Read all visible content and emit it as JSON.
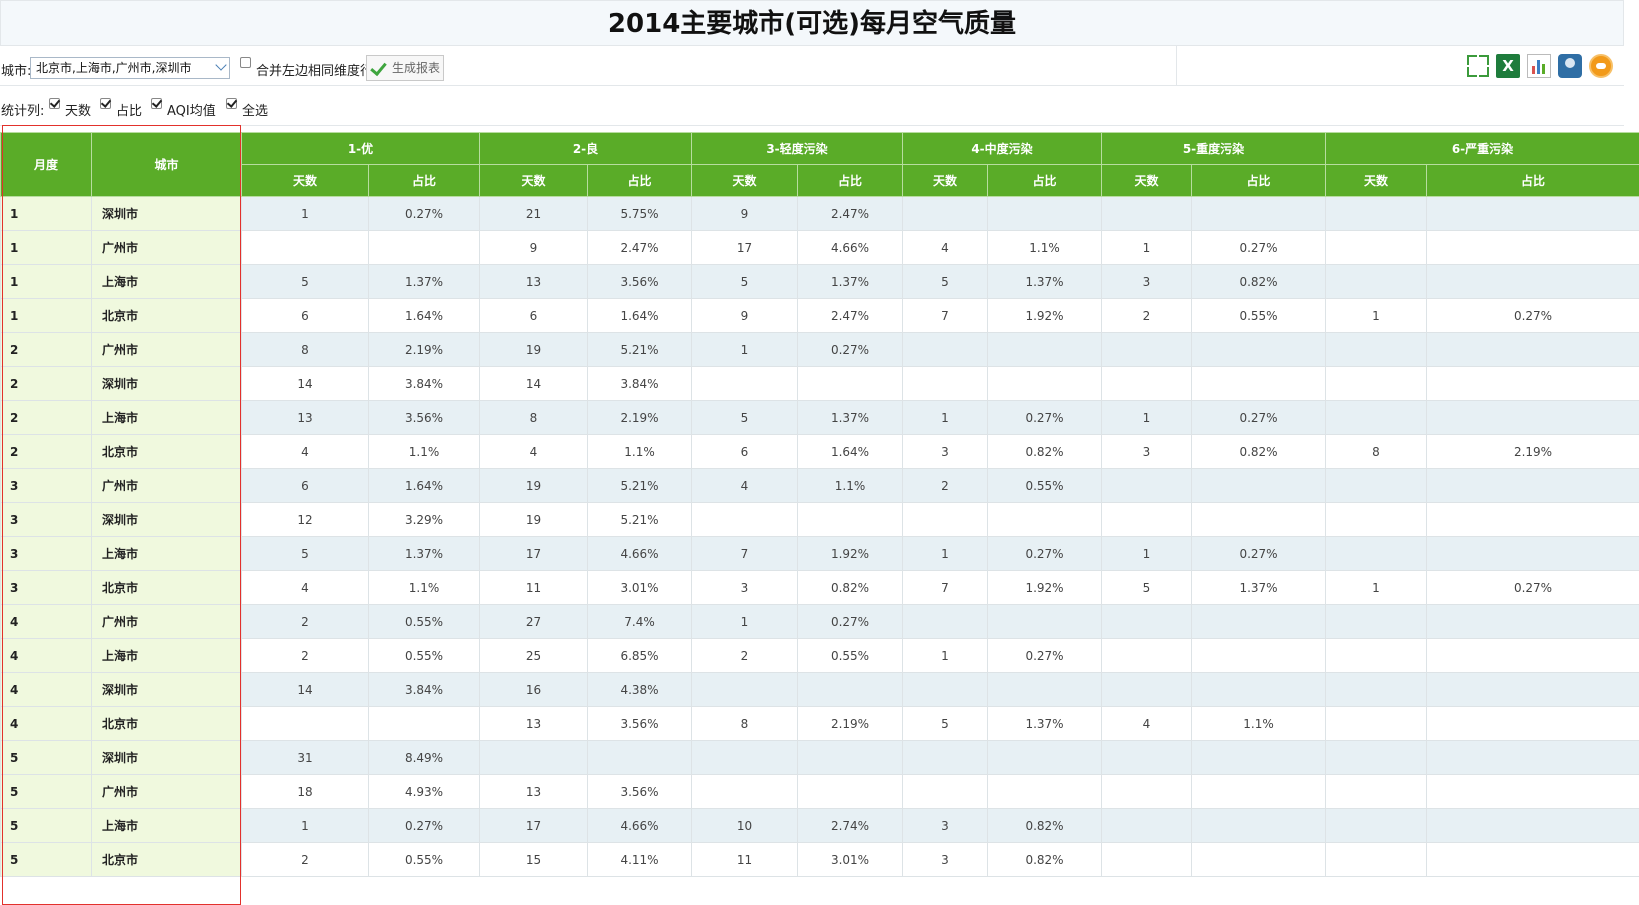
{
  "title": "2014主要城市(可选)每月空气质量",
  "toolbar": {
    "city_label": "城市:",
    "city_value": "北京市,上海市,广州市,深圳市",
    "merge_label": "合并左边相同维度行",
    "merge_checked": false,
    "generate_label": "生成报表",
    "icons": [
      "fullscreen-icon",
      "excel-icon",
      "chart-icon",
      "user-icon",
      "chat-icon"
    ],
    "excel_glyph": "X"
  },
  "stats": {
    "label": "统计列:",
    "options": [
      {
        "label": "天数",
        "checked": true
      },
      {
        "label": "占比",
        "checked": true
      },
      {
        "label": "AQI均值",
        "checked": true
      },
      {
        "label": "全选",
        "checked": true
      }
    ]
  },
  "table": {
    "fixed_headers": [
      "月度",
      "城市"
    ],
    "groups": [
      "1-优",
      "2-良",
      "3-轻度污染",
      "4-中度污染",
      "5-重度污染",
      "6-严重污染"
    ],
    "sub_headers": [
      "天数",
      "占比"
    ],
    "rows": [
      {
        "month": "1",
        "city": "深圳市",
        "values": [
          "1",
          "0.27%",
          "21",
          "5.75%",
          "9",
          "2.47%",
          "",
          "",
          "",
          "",
          "",
          ""
        ]
      },
      {
        "month": "1",
        "city": "广州市",
        "values": [
          "",
          "",
          "9",
          "2.47%",
          "17",
          "4.66%",
          "4",
          "1.1%",
          "1",
          "0.27%",
          "",
          ""
        ]
      },
      {
        "month": "1",
        "city": "上海市",
        "values": [
          "5",
          "1.37%",
          "13",
          "3.56%",
          "5",
          "1.37%",
          "5",
          "1.37%",
          "3",
          "0.82%",
          "",
          ""
        ]
      },
      {
        "month": "1",
        "city": "北京市",
        "values": [
          "6",
          "1.64%",
          "6",
          "1.64%",
          "9",
          "2.47%",
          "7",
          "1.92%",
          "2",
          "0.55%",
          "1",
          "0.27%"
        ]
      },
      {
        "month": "2",
        "city": "广州市",
        "values": [
          "8",
          "2.19%",
          "19",
          "5.21%",
          "1",
          "0.27%",
          "",
          "",
          "",
          "",
          "",
          ""
        ]
      },
      {
        "month": "2",
        "city": "深圳市",
        "values": [
          "14",
          "3.84%",
          "14",
          "3.84%",
          "",
          "",
          "",
          "",
          "",
          "",
          "",
          ""
        ]
      },
      {
        "month": "2",
        "city": "上海市",
        "values": [
          "13",
          "3.56%",
          "8",
          "2.19%",
          "5",
          "1.37%",
          "1",
          "0.27%",
          "1",
          "0.27%",
          "",
          ""
        ]
      },
      {
        "month": "2",
        "city": "北京市",
        "values": [
          "4",
          "1.1%",
          "4",
          "1.1%",
          "6",
          "1.64%",
          "3",
          "0.82%",
          "3",
          "0.82%",
          "8",
          "2.19%"
        ]
      },
      {
        "month": "3",
        "city": "广州市",
        "values": [
          "6",
          "1.64%",
          "19",
          "5.21%",
          "4",
          "1.1%",
          "2",
          "0.55%",
          "",
          "",
          "",
          ""
        ]
      },
      {
        "month": "3",
        "city": "深圳市",
        "values": [
          "12",
          "3.29%",
          "19",
          "5.21%",
          "",
          "",
          "",
          "",
          "",
          "",
          "",
          ""
        ]
      },
      {
        "month": "3",
        "city": "上海市",
        "values": [
          "5",
          "1.37%",
          "17",
          "4.66%",
          "7",
          "1.92%",
          "1",
          "0.27%",
          "1",
          "0.27%",
          "",
          ""
        ]
      },
      {
        "month": "3",
        "city": "北京市",
        "values": [
          "4",
          "1.1%",
          "11",
          "3.01%",
          "3",
          "0.82%",
          "7",
          "1.92%",
          "5",
          "1.37%",
          "1",
          "0.27%"
        ]
      },
      {
        "month": "4",
        "city": "广州市",
        "values": [
          "2",
          "0.55%",
          "27",
          "7.4%",
          "1",
          "0.27%",
          "",
          "",
          "",
          "",
          "",
          ""
        ]
      },
      {
        "month": "4",
        "city": "上海市",
        "values": [
          "2",
          "0.55%",
          "25",
          "6.85%",
          "2",
          "0.55%",
          "1",
          "0.27%",
          "",
          "",
          "",
          ""
        ]
      },
      {
        "month": "4",
        "city": "深圳市",
        "values": [
          "14",
          "3.84%",
          "16",
          "4.38%",
          "",
          "",
          "",
          "",
          "",
          "",
          "",
          ""
        ]
      },
      {
        "month": "4",
        "city": "北京市",
        "values": [
          "",
          "",
          "13",
          "3.56%",
          "8",
          "2.19%",
          "5",
          "1.37%",
          "4",
          "1.1%",
          "",
          ""
        ]
      },
      {
        "month": "5",
        "city": "深圳市",
        "values": [
          "31",
          "8.49%",
          "",
          "",
          "",
          "",
          "",
          "",
          "",
          "",
          "",
          ""
        ]
      },
      {
        "month": "5",
        "city": "广州市",
        "values": [
          "18",
          "4.93%",
          "13",
          "3.56%",
          "",
          "",
          "",
          "",
          "",
          "",
          "",
          ""
        ]
      },
      {
        "month": "5",
        "city": "上海市",
        "values": [
          "1",
          "0.27%",
          "17",
          "4.66%",
          "10",
          "2.74%",
          "3",
          "0.82%",
          "",
          "",
          "",
          ""
        ]
      },
      {
        "month": "5",
        "city": "北京市",
        "values": [
          "2",
          "0.55%",
          "15",
          "4.11%",
          "11",
          "3.01%",
          "3",
          "0.82%",
          "",
          "",
          "",
          ""
        ]
      }
    ]
  },
  "colors": {
    "header_green": "#5aac28",
    "fixed_col_bg": "#f0f9de",
    "alt_row_bg": "#e7f0f4",
    "highlight_box": "#e2312c"
  }
}
